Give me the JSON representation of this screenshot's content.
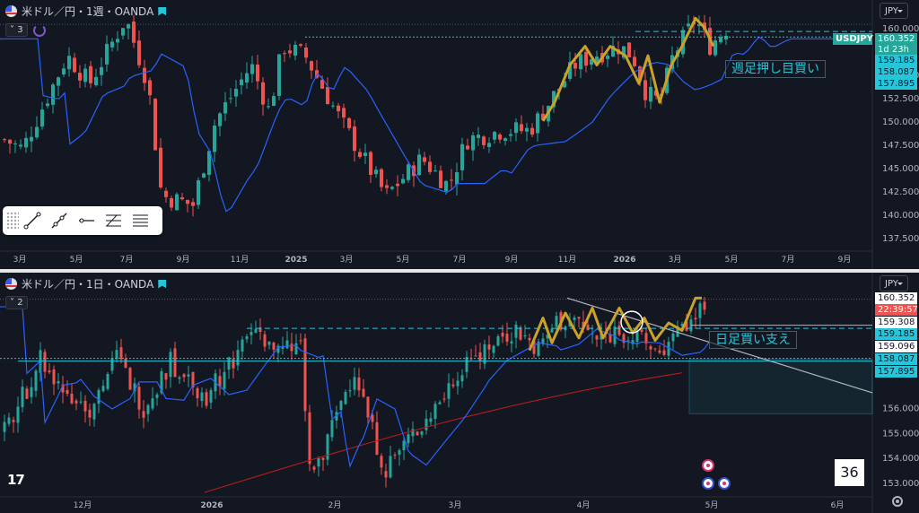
{
  "top": {
    "symbol": "米ドル／円・1週・OANDA",
    "indicator_count": "3",
    "currency": "JPY",
    "price_tag": "USDJPY",
    "price_labels": [
      {
        "text": "160.352",
        "bg": "#26a69a",
        "fg": "#ffffff"
      },
      {
        "text": "1d 23h",
        "bg": "#26a69a",
        "fg": "#ffffff"
      },
      {
        "text": "159.185",
        "bg": "#26c6da",
        "fg": "#131722"
      },
      {
        "text": "158.087",
        "bg": "#26c6da",
        "fg": "#131722"
      },
      {
        "text": "157.895",
        "bg": "#26c6da",
        "fg": "#131722"
      }
    ],
    "y_ticks": [
      160.0,
      155.0,
      152.5,
      150.0,
      147.5,
      145.0,
      142.5,
      140.0,
      137.5
    ],
    "x_labels": [
      "3月",
      "5月",
      "7月",
      "9月",
      "11月",
      "2025",
      "3月",
      "5月",
      "7月",
      "9月",
      "11月",
      "2026",
      "3月",
      "5月",
      "7月",
      "9月"
    ],
    "annotation": "週足押し目買い"
  },
  "bottom": {
    "symbol": "米ドル／円・1日・OANDA",
    "indicator_count": "2",
    "currency": "JPY",
    "price_labels": [
      {
        "text": "160.352",
        "bg": "#ffffff",
        "fg": "#131722"
      },
      {
        "text": "22:39:57",
        "bg": "#ef5350",
        "fg": "#ffffff"
      },
      {
        "text": "159.308",
        "bg": "#ffffff",
        "fg": "#131722"
      },
      {
        "text": "159.185",
        "bg": "#26c6da",
        "fg": "#131722"
      },
      {
        "text": "159.096",
        "bg": "#ffffff",
        "fg": "#131722"
      },
      {
        "text": "158.087",
        "bg": "#26c6da",
        "fg": "#131722"
      },
      {
        "text": "157.895",
        "bg": "#26c6da",
        "fg": "#131722"
      }
    ],
    "y_ticks": [
      156.0,
      155.0,
      154.0,
      153.0
    ],
    "x_labels": [
      "12月",
      "2026",
      "2月",
      "3月",
      "4月",
      "5月",
      "6月"
    ],
    "annotation": "日足買い支え",
    "counter": "36"
  },
  "drawing_tools": [
    "trend-line-tool",
    "ray-tool",
    "horizontal-ray-tool",
    "fib-tool",
    "parallel-lines-tool"
  ],
  "colors": {
    "up": "#26a69a",
    "down": "#ef5350",
    "ma": "#2962ff",
    "wave": "#c9a227",
    "level": "#26c6da"
  },
  "tv_logo": "17"
}
